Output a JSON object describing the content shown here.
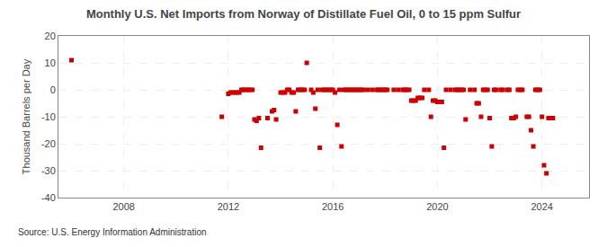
{
  "chart_data": {
    "type": "scatter",
    "title": "Monthly U.S. Net Imports from Norway of Distillate Fuel Oil, 0 to 15 ppm Sulfur",
    "ylabel": "Thousand Barrels per Day",
    "annotations": [
      "Source: U.S. Energy Information Administration"
    ],
    "color": "#cc0000",
    "marker": "square",
    "grid": true,
    "xlim": [
      2005.5,
      2025.8
    ],
    "ylim": [
      -40,
      20
    ],
    "xticks": [
      2008,
      2012,
      2016,
      2020,
      2024
    ],
    "yticks": [
      -40,
      -30,
      -20,
      -10,
      0,
      10,
      20
    ],
    "x": [
      2006.0,
      2011.75,
      2012.0,
      2012.08,
      2012.17,
      2012.25,
      2012.33,
      2012.42,
      2012.5,
      2012.58,
      2012.67,
      2012.75,
      2012.83,
      2012.92,
      2013.0,
      2013.08,
      2013.17,
      2013.25,
      2013.5,
      2013.67,
      2013.75,
      2013.83,
      2014.0,
      2014.08,
      2014.17,
      2014.25,
      2014.33,
      2014.42,
      2014.5,
      2014.58,
      2014.67,
      2014.75,
      2014.83,
      2014.92,
      2015.0,
      2015.17,
      2015.25,
      2015.33,
      2015.42,
      2015.5,
      2015.58,
      2015.67,
      2015.75,
      2015.83,
      2015.92,
      2016.0,
      2016.08,
      2016.17,
      2016.25,
      2016.33,
      2016.42,
      2016.5,
      2016.58,
      2016.67,
      2016.75,
      2016.83,
      2016.92,
      2017.0,
      2017.08,
      2017.17,
      2017.33,
      2017.5,
      2017.67,
      2017.75,
      2017.83,
      2017.92,
      2018.0,
      2018.08,
      2018.33,
      2018.5,
      2018.67,
      2018.75,
      2018.83,
      2018.92,
      2019.0,
      2019.08,
      2019.17,
      2019.25,
      2019.33,
      2019.42,
      2019.5,
      2019.67,
      2019.75,
      2019.83,
      2019.92,
      2020.0,
      2020.08,
      2020.17,
      2020.25,
      2020.33,
      2020.5,
      2020.67,
      2020.75,
      2020.83,
      2020.92,
      2021.0,
      2021.08,
      2021.25,
      2021.42,
      2021.5,
      2021.58,
      2021.67,
      2021.75,
      2021.83,
      2021.92,
      2022.0,
      2022.08,
      2022.17,
      2022.25,
      2022.42,
      2022.5,
      2022.67,
      2022.75,
      2022.83,
      2022.92,
      2023.0,
      2023.08,
      2023.17,
      2023.25,
      2023.42,
      2023.5,
      2023.58,
      2023.67,
      2023.75,
      2023.83,
      2023.92,
      2024.0,
      2024.08,
      2024.17,
      2024.25,
      2024.33,
      2024.42
    ],
    "values": [
      11.0,
      -10.0,
      -1.5,
      -1.0,
      -1.0,
      -1.0,
      -1.0,
      -1.0,
      0.0,
      0.0,
      0.0,
      0.0,
      0.0,
      0.0,
      -11.0,
      -11.5,
      -10.5,
      -21.5,
      -10.5,
      -8.0,
      -7.5,
      -11.0,
      -1.0,
      -1.0,
      -1.0,
      0.0,
      0.0,
      -1.0,
      -1.0,
      -8.0,
      0.0,
      0.0,
      0.0,
      0.0,
      10.0,
      0.0,
      -1.0,
      -7.0,
      0.0,
      -21.5,
      0.0,
      0.0,
      0.0,
      0.0,
      0.0,
      0.0,
      -1.0,
      -13.0,
      0.0,
      -21.0,
      0.0,
      0.0,
      0.0,
      0.0,
      0.0,
      0.0,
      0.0,
      0.0,
      0.0,
      0.0,
      0.0,
      0.0,
      0.0,
      0.0,
      0.0,
      0.0,
      0.0,
      0.0,
      0.0,
      0.0,
      0.0,
      0.0,
      0.0,
      0.0,
      -4.0,
      -4.0,
      -4.0,
      -3.0,
      -3.0,
      -3.0,
      0.0,
      0.0,
      -10.0,
      -4.0,
      -4.0,
      -4.5,
      -4.5,
      -4.5,
      -21.5,
      0.0,
      0.0,
      0.0,
      0.0,
      0.0,
      0.0,
      0.0,
      -11.0,
      0.0,
      0.0,
      -5.0,
      -5.0,
      -10.0,
      0.0,
      0.0,
      0.0,
      -10.5,
      -21.0,
      0.0,
      0.0,
      0.0,
      0.0,
      0.0,
      0.0,
      -10.5,
      -10.5,
      -10.0,
      0.0,
      0.0,
      0.0,
      -10.0,
      -10.0,
      -15.0,
      -21.0,
      0.0,
      0.0,
      0.0,
      -10.0,
      -28.0,
      -31.0,
      -10.5,
      -10.5,
      -10.5
    ]
  }
}
